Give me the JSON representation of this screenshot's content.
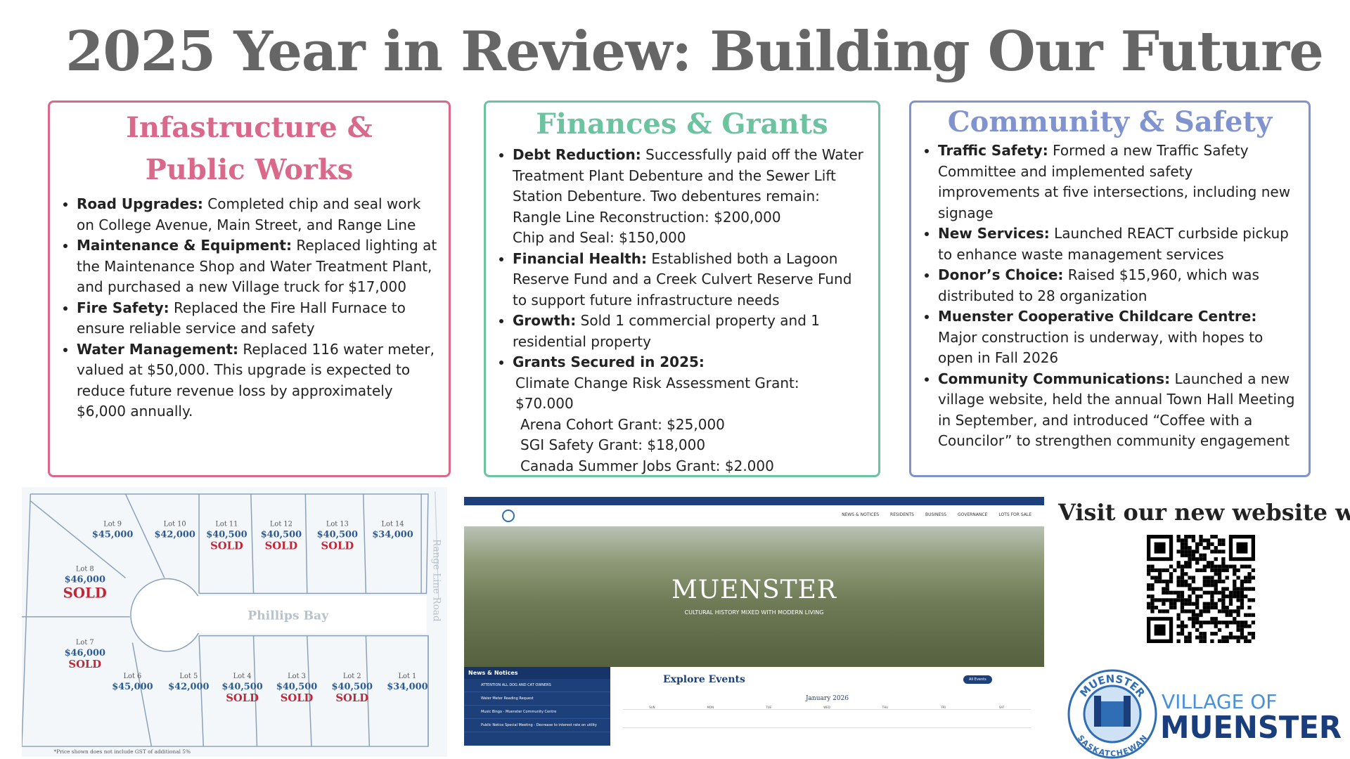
{
  "title": "2025 Year in Review: Building Our Future",
  "panels": [
    {
      "heading": "Infastructure & Public Works",
      "items": [
        {
          "label": "Road Upgrades:",
          "text": "Completed chip and seal work on College Avenue, Main Street, and Range Line"
        },
        {
          "label": "Maintenance & Equipment:",
          "text": "Replaced lighting at the Maintenance Shop and Water Treatment Plant, and purchased a new Village truck for $17,000"
        },
        {
          "label": "Fire Safety:",
          "text": "Replaced the Fire Hall Furnace to ensure reliable service and safety"
        },
        {
          "label": "Water Management:",
          "text": "Replaced 116 water meter, valued at $50,000. This upgrade is expected to reduce future revenue loss by approximately $6,000 annually."
        }
      ]
    },
    {
      "heading": "Finances & Grants",
      "items": [
        {
          "label": "Debt Reduction:",
          "text": "Successfully paid off the Water Treatment Plant Debenture and the Sewer Lift Station Debenture. Two debentures remain:",
          "lines": [
            "Rangle Line Reconstruction: $200,000",
            "Chip and Seal: $150,000"
          ]
        },
        {
          "label": "Financial Health:",
          "text": "Established both a Lagoon Reserve Fund and a Creek Culvert Reserve Fund to support future infrastructure needs"
        },
        {
          "label": "Growth:",
          "text": "Sold 1 commercial property and 1 residential property"
        },
        {
          "label": "Grants Secured in 2025:",
          "lines": [
            "Climate Change Risk Assessment Grant: $70.000",
            "Arena Cohort Grant: $25,000",
            "SGI Safety Grant: $18,000",
            "Canada Summer Jobs Grant: $2.000"
          ]
        }
      ]
    },
    {
      "heading": "Community & Safety",
      "items": [
        {
          "label": "Traffic Safety:",
          "text": "Formed a new Traffic Safety Committee and implemented safety improvements at five intersections, including new signage"
        },
        {
          "label": "New Services:",
          "text": "Launched REACT curbside pickup to enhance waste management services"
        },
        {
          "label": "Donor’s Choice:",
          "text": "Raised $15,960, which was distributed to 28 organization"
        },
        {
          "label": "Muenster Cooperative Childcare Centre:",
          "text": "Major construction is underway, with hopes to open in Fall 2026"
        },
        {
          "label": "Community Communications:",
          "text": "Launched a new village website, held the annual Town Hall Meeting in September, and introduced “Coffee with a Councilor” to strengthen community engagement"
        }
      ]
    }
  ],
  "lot_map": {
    "street": "Phillips Bay",
    "road": "Range Line Road",
    "footnote": "*Price shown does not include GST of additional 5%",
    "lots": [
      {
        "name": "Lot 9",
        "price": "$45,000"
      },
      {
        "name": "Lot 10",
        "price": "$42,000"
      },
      {
        "name": "Lot 11",
        "price": "$40,500",
        "status": "SOLD"
      },
      {
        "name": "Lot 12",
        "price": "$40,500",
        "status": "SOLD"
      },
      {
        "name": "Lot 13",
        "price": "$40,500",
        "status": "SOLD"
      },
      {
        "name": "Lot 14",
        "price": "$34,000"
      },
      {
        "name": "Lot 8",
        "price": "$46,000",
        "status": "SOLD"
      },
      {
        "name": "Lot 7",
        "price": "$46,000",
        "status": "SOLD"
      },
      {
        "name": "Lot 6",
        "price": "$45,000"
      },
      {
        "name": "Lot 5",
        "price": "$42,000"
      },
      {
        "name": "Lot 4",
        "price": "$40,500",
        "status": "SOLD"
      },
      {
        "name": "Lot 3",
        "price": "$40,500",
        "status": "SOLD"
      },
      {
        "name": "Lot 2",
        "price": "$40,500",
        "status": "SOLD"
      },
      {
        "name": "Lot 1",
        "price": "$34,000"
      }
    ]
  },
  "website": {
    "nav": [
      "NEWS & NOTICES",
      "RESIDENTS",
      "BUSINESS",
      "GOVERNANCE",
      "LOTS FOR SALE"
    ],
    "hero_title": "MUENSTER",
    "hero_subtitle": "CULTURAL HISTORY MIXED WITH MODERN LIVING",
    "news_heading": "News & Notices",
    "news": [
      "ATTENTION ALL DOG AND CAT OWNERS",
      "Water Meter Reading Request",
      "Music Bingo - Muenster Community Centre",
      "Public Notice Special Meeting - Decrease to interest rate on utility"
    ],
    "events_heading": "Explore Events",
    "events_button": "All Events",
    "month": "January 2026",
    "weekdays": [
      "SUN",
      "MON",
      "TUE",
      "WED",
      "THU",
      "FRI",
      "SAT"
    ]
  },
  "cta": "Visit our new website with:",
  "logo": {
    "ring_top": "MUENSTER",
    "ring_bottom": "SASKATCHEWAN",
    "line1": "VILLAGE OF",
    "line2": "MUENSTER"
  }
}
